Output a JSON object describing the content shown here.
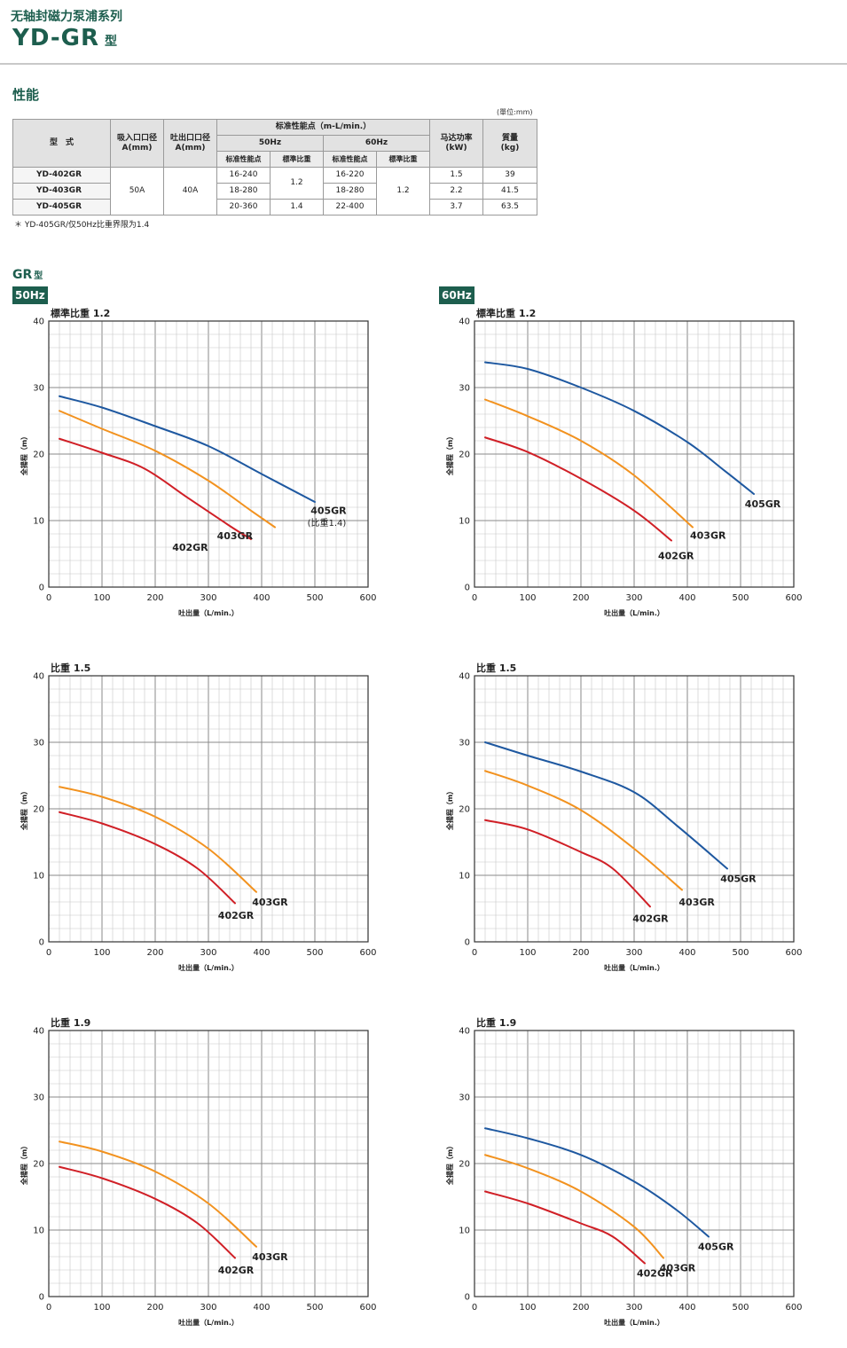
{
  "header": {
    "series_title": "无轴封磁力泵浦系列",
    "model_title": "YD-GR",
    "model_suffix": "型"
  },
  "performance": {
    "heading": "性能",
    "unit_note": "(單位:mm)",
    "headers": {
      "model": "型　式",
      "suction": "吸入口口径",
      "suction_unit": "A(mm)",
      "discharge": "吐出口口径",
      "discharge_unit": "A(mm)",
      "std_perf": "标准性能点（m-L/min.）",
      "hz50": "50Hz",
      "hz60": "60Hz",
      "std_point_50": "标准性能点",
      "std_sg_50": "標準比重",
      "std_point_60": "标准性能点",
      "std_sg_60": "標準比重",
      "motor": "马达功率",
      "motor_unit": "(kW)",
      "weight": "質量",
      "weight_unit": "(kg)"
    },
    "suction_value": "50A",
    "discharge_value": "40A",
    "sg_group_50": "1.2",
    "sg_group_60": "1.2",
    "rows": [
      {
        "model": "YD-402GR",
        "p50": "16-240",
        "p60": "16-220",
        "kw": "1.5",
        "kg": "39"
      },
      {
        "model": "YD-403GR",
        "p50": "18-280",
        "p60": "18-280",
        "kw": "2.2",
        "kg": "41.5"
      },
      {
        "model": "YD-405GR",
        "p50": "20-360",
        "sg50": "1.4",
        "p60": "22-400",
        "kw": "3.7",
        "kg": "63.5"
      }
    ],
    "footnote": "＊ YD-405GR/仅50Hz比重界限为1.4"
  },
  "gr_section": {
    "heading": "GR",
    "suffix": "型",
    "hz50_badge": "50Hz",
    "hz60_badge": "60Hz"
  },
  "colors": {
    "402GR": "#d01f26",
    "403GR": "#f2921f",
    "405GR": "#1e58a0",
    "brand": "#1d5e4e"
  },
  "chart_data": [
    {
      "type": "line",
      "id": "c50_12",
      "title": "標準比重 1.2",
      "xlabel": "吐出量（L/min.）",
      "ylabel": "全揚程（m）",
      "xlim": [
        0,
        600
      ],
      "ylim": [
        0,
        40
      ],
      "xticks": [
        0,
        100,
        200,
        300,
        400,
        500,
        600
      ],
      "yticks": [
        0,
        10,
        20,
        30,
        40
      ],
      "series": [
        {
          "name": "402GR",
          "color": "#d01f26",
          "points": [
            [
              20,
              22.3
            ],
            [
              100,
              20.2
            ],
            [
              180,
              17.8
            ],
            [
              260,
              13.5
            ],
            [
              340,
              9.2
            ],
            [
              380,
              7.2
            ]
          ],
          "label_at": [
            232,
            5.5
          ]
        },
        {
          "name": "403GR",
          "color": "#f2921f",
          "points": [
            [
              20,
              26.5
            ],
            [
              100,
              23.8
            ],
            [
              200,
              20.5
            ],
            [
              300,
              16.0
            ],
            [
              380,
              11.5
            ],
            [
              425,
              9.0
            ]
          ],
          "label_at": [
            316,
            7.2
          ]
        },
        {
          "name": "405GR",
          "color": "#1e58a0",
          "points": [
            [
              20,
              28.7
            ],
            [
              100,
              27.0
            ],
            [
              200,
              24.2
            ],
            [
              300,
              21.2
            ],
            [
              400,
              17.0
            ],
            [
              500,
              12.8
            ]
          ],
          "label_at": [
            492,
            11.0
          ],
          "sublabel": "(比重1.4)",
          "sublabel_at": [
            486,
            9.2
          ]
        }
      ]
    },
    {
      "type": "line",
      "id": "c60_12",
      "title": "標準比重 1.2",
      "xlabel": "吐出量（L/min.）",
      "ylabel": "全揚程（m）",
      "xlim": [
        0,
        600
      ],
      "ylim": [
        0,
        40
      ],
      "xticks": [
        0,
        100,
        200,
        300,
        400,
        500,
        600
      ],
      "yticks": [
        0,
        10,
        20,
        30,
        40
      ],
      "series": [
        {
          "name": "402GR",
          "color": "#d01f26",
          "points": [
            [
              20,
              22.5
            ],
            [
              100,
              20.3
            ],
            [
              200,
              16.3
            ],
            [
              300,
              11.5
            ],
            [
              370,
              7.0
            ]
          ],
          "label_at": [
            345,
            4.2
          ]
        },
        {
          "name": "403GR",
          "color": "#f2921f",
          "points": [
            [
              20,
              28.2
            ],
            [
              100,
              25.7
            ],
            [
              200,
              22.0
            ],
            [
              300,
              16.8
            ],
            [
              410,
              9.0
            ]
          ],
          "label_at": [
            405,
            7.3
          ]
        },
        {
          "name": "405GR",
          "color": "#1e58a0",
          "points": [
            [
              20,
              33.8
            ],
            [
              100,
              32.8
            ],
            [
              200,
              30.0
            ],
            [
              300,
              26.5
            ],
            [
              400,
              21.8
            ],
            [
              470,
              17.5
            ],
            [
              525,
              14.0
            ]
          ],
          "label_at": [
            508,
            12.0
          ]
        }
      ]
    },
    {
      "type": "line",
      "id": "c50_15",
      "title": "比重 1.5",
      "xlabel": "吐出量（L/min.）",
      "ylabel": "全揚程（m）",
      "xlim": [
        0,
        600
      ],
      "ylim": [
        0,
        40
      ],
      "xticks": [
        0,
        100,
        200,
        300,
        400,
        500,
        600
      ],
      "yticks": [
        0,
        10,
        20,
        30,
        40
      ],
      "series": [
        {
          "name": "402GR",
          "color": "#d01f26",
          "points": [
            [
              20,
              19.5
            ],
            [
              100,
              17.8
            ],
            [
              200,
              14.7
            ],
            [
              280,
              11.0
            ],
            [
              350,
              5.8
            ]
          ],
          "label_at": [
            318,
            3.5
          ]
        },
        {
          "name": "403GR",
          "color": "#f2921f",
          "points": [
            [
              20,
              23.3
            ],
            [
              100,
              21.8
            ],
            [
              200,
              18.8
            ],
            [
              300,
              14.0
            ],
            [
              390,
              7.5
            ]
          ],
          "label_at": [
            382,
            5.5
          ]
        }
      ]
    },
    {
      "type": "line",
      "id": "c60_15",
      "title": "比重 1.5",
      "xlabel": "吐出量（L/min.）",
      "ylabel": "全揚程（m）",
      "xlim": [
        0,
        600
      ],
      "ylim": [
        0,
        40
      ],
      "xticks": [
        0,
        100,
        200,
        300,
        400,
        500,
        600
      ],
      "yticks": [
        0,
        10,
        20,
        30,
        40
      ],
      "series": [
        {
          "name": "402GR",
          "color": "#d01f26",
          "points": [
            [
              20,
              18.3
            ],
            [
              100,
              16.9
            ],
            [
              200,
              13.5
            ],
            [
              260,
              11.0
            ],
            [
              330,
              5.3
            ]
          ],
          "label_at": [
            297,
            3.0
          ]
        },
        {
          "name": "403GR",
          "color": "#f2921f",
          "points": [
            [
              20,
              25.7
            ],
            [
              100,
              23.5
            ],
            [
              200,
              19.8
            ],
            [
              300,
              14.0
            ],
            [
              390,
              7.8
            ]
          ],
          "label_at": [
            384,
            5.5
          ]
        },
        {
          "name": "405GR",
          "color": "#1e58a0",
          "points": [
            [
              20,
              30.0
            ],
            [
              100,
              28.0
            ],
            [
              200,
              25.6
            ],
            [
              300,
              22.5
            ],
            [
              380,
              17.5
            ],
            [
              475,
              11.0
            ]
          ],
          "label_at": [
            462,
            9.0
          ]
        }
      ]
    },
    {
      "type": "line",
      "id": "c50_19",
      "title": "比重 1.9",
      "xlabel": "吐出量（L/min.）",
      "ylabel": "全揚程（m）",
      "xlim": [
        0,
        600
      ],
      "ylim": [
        0,
        40
      ],
      "xticks": [
        0,
        100,
        200,
        300,
        400,
        500,
        600
      ],
      "yticks": [
        0,
        10,
        20,
        30,
        40
      ],
      "series": [
        {
          "name": "402GR",
          "color": "#d01f26",
          "points": [
            [
              20,
              19.5
            ],
            [
              100,
              17.8
            ],
            [
              200,
              14.7
            ],
            [
              280,
              11.0
            ],
            [
              350,
              5.8
            ]
          ],
          "label_at": [
            318,
            3.5
          ]
        },
        {
          "name": "403GR",
          "color": "#f2921f",
          "points": [
            [
              20,
              23.3
            ],
            [
              100,
              21.8
            ],
            [
              200,
              18.8
            ],
            [
              300,
              14.0
            ],
            [
              390,
              7.5
            ]
          ],
          "label_at": [
            382,
            5.5
          ]
        }
      ]
    },
    {
      "type": "line",
      "id": "c60_19",
      "title": "比重 1.9",
      "xlabel": "吐出量（L/min.）",
      "ylabel": "全揚程（m）",
      "xlim": [
        0,
        600
      ],
      "ylim": [
        0,
        40
      ],
      "xticks": [
        0,
        100,
        200,
        300,
        400,
        500,
        600
      ],
      "yticks": [
        0,
        10,
        20,
        30,
        40
      ],
      "series": [
        {
          "name": "402GR",
          "color": "#d01f26",
          "points": [
            [
              20,
              15.8
            ],
            [
              100,
              14.0
            ],
            [
              200,
              11.0
            ],
            [
              260,
              9.0
            ],
            [
              320,
              5.0
            ]
          ],
          "label_at": [
            305,
            3.0
          ]
        },
        {
          "name": "403GR",
          "color": "#f2921f",
          "points": [
            [
              20,
              21.3
            ],
            [
              100,
              19.3
            ],
            [
              200,
              15.8
            ],
            [
              300,
              10.5
            ],
            [
              355,
              5.8
            ]
          ],
          "label_at": [
            348,
            3.8
          ]
        },
        {
          "name": "405GR",
          "color": "#1e58a0",
          "points": [
            [
              20,
              25.3
            ],
            [
              100,
              23.8
            ],
            [
              200,
              21.3
            ],
            [
              300,
              17.3
            ],
            [
              380,
              13.0
            ],
            [
              440,
              9.0
            ]
          ],
          "label_at": [
            420,
            7.0
          ]
        }
      ]
    }
  ]
}
